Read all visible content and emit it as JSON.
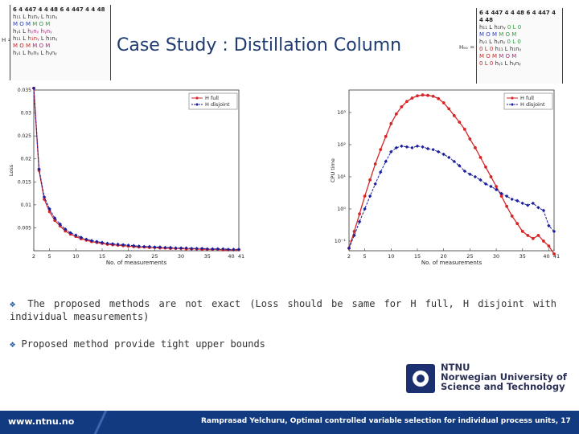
{
  "slide": {
    "title": "Case Study : Distillation Column",
    "bullets": [
      "The proposed methods are not exact (Loss should be same for H full, H disjoint with individual measurements)",
      "Proposed method provide tight upper bounds"
    ],
    "bullet_icon": "diamond-bullet-icon",
    "colors": {
      "title": "#1f3a6e",
      "footer": "#123a80",
      "h_full": "#d62728",
      "h_disjoint": "#1a1f9c"
    }
  },
  "footer": {
    "url": "www.ntnu.no",
    "citation": "Ramprasad Yelchuru, Optimal controlled variable selection for individual process units",
    "page": ", 17"
  },
  "logo": {
    "line1": "NTNU",
    "line2": "Norwegian University of",
    "line3": "Science and Technology"
  },
  "matrix_left": {
    "label": "H =",
    "header": "6 4 447 4 4 48 6 4 447 4 4 48",
    "rows": [
      [
        "h₁₁",
        "L",
        "h₁nᵧ",
        "L",
        "h₁nᵧ"
      ],
      [
        "M",
        "O",
        "M",
        "M",
        "O",
        "M"
      ],
      [
        "hᵧ₁",
        "L",
        "hᵧnᵧ",
        "hᵧnᵧ"
      ],
      [
        "h₁₁",
        "L",
        "h₁nᵧ",
        "L",
        "h₁nᵧ"
      ],
      [
        "M",
        "O",
        "M",
        "M",
        "O",
        "M"
      ],
      [
        "hᵧ₁",
        "L",
        "hᵧnᵧ",
        "L",
        "hᵧnᵧ"
      ]
    ]
  },
  "matrix_right": {
    "label": "Hₑₒ =",
    "header": "6 4 447 4 4 48 6 4 447 4 4 48",
    "rows": [
      [
        "h₁₁",
        "L",
        "h₁nᵧ",
        "0",
        "L",
        "0"
      ],
      [
        "M",
        "O",
        "M",
        "M",
        "O",
        "M"
      ],
      [
        "hᵧ₁",
        "L",
        "hᵧnᵧ",
        "0",
        "L",
        "0"
      ],
      [
        "0",
        "L",
        "0",
        "h₁₁",
        "L",
        "h₁nᵧ"
      ],
      [
        "M",
        "O",
        "M",
        "M",
        "O",
        "M"
      ],
      [
        "0",
        "L",
        "0",
        "hᵧ₁",
        "L",
        "hᵧnᵧ"
      ]
    ]
  },
  "chart_data": [
    {
      "type": "line",
      "xlabel": "No. of measurements",
      "ylabel": "Loss",
      "xlim": [
        2,
        41
      ],
      "ylim": [
        0,
        0.035
      ],
      "xticks": [
        "2",
        "5",
        "10",
        "15",
        "20",
        "25",
        "30",
        "35",
        "40",
        "41"
      ],
      "yticks": [
        "0.005",
        "0.01",
        "0.015",
        "0.02",
        "0.025",
        "0.03",
        "0.035"
      ],
      "legend_position": "top-right",
      "x": [
        2,
        3,
        4,
        5,
        6,
        7,
        8,
        9,
        10,
        11,
        12,
        13,
        14,
        15,
        16,
        17,
        18,
        19,
        20,
        21,
        22,
        23,
        24,
        25,
        26,
        27,
        28,
        29,
        30,
        31,
        32,
        33,
        34,
        35,
        36,
        37,
        38,
        39,
        40,
        41
      ],
      "series": [
        {
          "name": "H full",
          "values": [
            0.0354,
            0.0175,
            0.0112,
            0.0085,
            0.0066,
            0.0054,
            0.0043,
            0.0036,
            0.0031,
            0.0026,
            0.0023,
            0.002,
            0.0018,
            0.0016,
            0.0014,
            0.0013,
            0.0012,
            0.0011,
            0.001,
            0.0009,
            0.0008,
            0.0008,
            0.0007,
            0.0007,
            0.0006,
            0.0006,
            0.0005,
            0.0005,
            0.0005,
            0.0004,
            0.0004,
            0.0004,
            0.0003,
            0.0003,
            0.0003,
            0.0003,
            0.0002,
            0.0002,
            0.0002,
            0.0002
          ]
        },
        {
          "name": "H disjoint",
          "values": [
            0.0354,
            0.0178,
            0.0117,
            0.0091,
            0.0071,
            0.0058,
            0.0047,
            0.0039,
            0.0034,
            0.0029,
            0.0025,
            0.0022,
            0.002,
            0.0018,
            0.0016,
            0.0015,
            0.0014,
            0.0013,
            0.0012,
            0.0011,
            0.001,
            0.0009,
            0.0009,
            0.0008,
            0.0008,
            0.0007,
            0.0007,
            0.0006,
            0.0006,
            0.0006,
            0.0005,
            0.0005,
            0.0005,
            0.0004,
            0.0004,
            0.0004,
            0.0004,
            0.0003,
            0.0003,
            0.0003
          ]
        }
      ]
    },
    {
      "type": "line",
      "xlabel": "No. of measurements",
      "ylabel": "CPU time",
      "xlim": [
        2,
        41
      ],
      "y_scale": "log",
      "ylim": [
        0.05,
        5000
      ],
      "xticks": [
        "2",
        "5",
        "10",
        "15",
        "20",
        "25",
        "30",
        "35",
        "40",
        "41"
      ],
      "yticks": [
        "10⁻¹",
        "10⁰",
        "10¹",
        "10²",
        "10³"
      ],
      "legend_position": "top-right",
      "x": [
        2,
        3,
        4,
        5,
        6,
        7,
        8,
        9,
        10,
        11,
        12,
        13,
        14,
        15,
        16,
        17,
        18,
        19,
        20,
        21,
        22,
        23,
        24,
        25,
        26,
        27,
        28,
        29,
        30,
        31,
        32,
        33,
        34,
        35,
        36,
        37,
        38,
        39,
        40,
        41
      ],
      "series": [
        {
          "name": "H full",
          "values": [
            0.06,
            0.2,
            0.7,
            2.5,
            8,
            25,
            70,
            180,
            450,
            900,
            1500,
            2200,
            2800,
            3300,
            3500,
            3400,
            3200,
            2700,
            2000,
            1300,
            800,
            500,
            300,
            150,
            80,
            40,
            20,
            10,
            5,
            2.5,
            1.2,
            0.6,
            0.35,
            0.2,
            0.15,
            0.12,
            0.15,
            0.1,
            0.07,
            0.04
          ]
        },
        {
          "name": "H disjoint",
          "values": [
            0.06,
            0.15,
            0.4,
            1,
            2.5,
            6,
            14,
            30,
            60,
            80,
            90,
            85,
            80,
            90,
            85,
            75,
            70,
            60,
            50,
            40,
            30,
            22,
            15,
            12,
            10,
            8,
            6,
            5,
            4,
            3,
            2.5,
            2,
            1.8,
            1.5,
            1.3,
            1.5,
            1.1,
            0.9,
            0.3,
            0.2
          ]
        }
      ]
    }
  ]
}
